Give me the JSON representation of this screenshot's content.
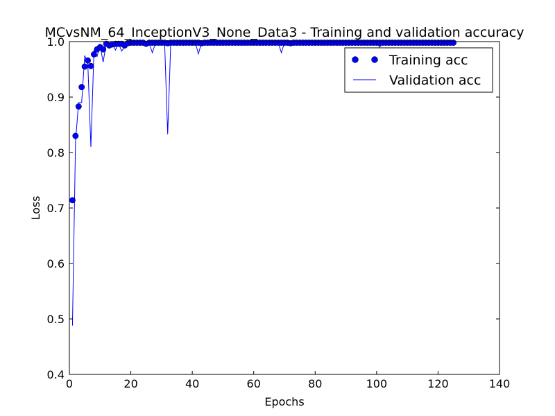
{
  "chart_data": {
    "type": "line",
    "title": "MCvsNM_64_InceptionV3_None_Data3 - Training and validation accuracy",
    "xlabel": "Epochs",
    "ylabel": "Loss",
    "xlim": [
      0,
      140
    ],
    "ylim": [
      0.4,
      1.0
    ],
    "xticks": [
      0,
      20,
      40,
      60,
      80,
      100,
      120,
      140
    ],
    "yticks": [
      0.4,
      0.5,
      0.6,
      0.7,
      0.8,
      0.9,
      1.0
    ],
    "xtick_labels": [
      "0",
      "20",
      "40",
      "60",
      "80",
      "100",
      "120",
      "140"
    ],
    "ytick_labels": [
      "0.4",
      "0.5",
      "0.6",
      "0.7",
      "0.8",
      "0.9",
      "1.0"
    ],
    "grid": false,
    "legend_position": "top-right",
    "series_color": "#0000ff",
    "series": [
      {
        "name": "Training acc",
        "style": "markers",
        "x": [
          1,
          2,
          3,
          4,
          5,
          6,
          7,
          8,
          9,
          10,
          11,
          12,
          13,
          14,
          15,
          16,
          17,
          18,
          19,
          20,
          21,
          22,
          23,
          24,
          25,
          26,
          27,
          28,
          29,
          30,
          31,
          32,
          33,
          34,
          35,
          36,
          37,
          38,
          39,
          40,
          41,
          42,
          43,
          44,
          45,
          46,
          47,
          48,
          49,
          50,
          51,
          52,
          53,
          54,
          55,
          56,
          57,
          58,
          59,
          60,
          61,
          62,
          63,
          64,
          65,
          66,
          67,
          68,
          69,
          70,
          71,
          72,
          73,
          74,
          75,
          76,
          77,
          78,
          79,
          80,
          81,
          82,
          83,
          84,
          85,
          86,
          87,
          88,
          89,
          90,
          91,
          92,
          93,
          94,
          95,
          96,
          97,
          98,
          99,
          100,
          101,
          102,
          103,
          104,
          105,
          106,
          107,
          108,
          109,
          110,
          111,
          112,
          113,
          114,
          115,
          116,
          117,
          118,
          119,
          120,
          121,
          122,
          123,
          124,
          125
        ],
        "values": [
          0.714,
          0.83,
          0.883,
          0.918,
          0.955,
          0.966,
          0.956,
          0.977,
          0.986,
          0.99,
          0.986,
          0.996,
          0.993,
          0.995,
          0.996,
          0.996,
          0.996,
          0.993,
          0.997,
          0.998,
          0.998,
          0.998,
          0.998,
          0.998,
          0.996,
          0.998,
          0.998,
          0.998,
          0.998,
          0.998,
          0.998,
          0.997,
          0.998,
          0.998,
          0.998,
          0.998,
          0.998,
          0.998,
          0.998,
          0.998,
          0.998,
          0.998,
          0.997,
          0.998,
          0.998,
          0.998,
          0.998,
          0.998,
          0.998,
          0.998,
          0.998,
          0.998,
          0.998,
          0.998,
          0.998,
          0.998,
          0.998,
          0.998,
          0.998,
          0.998,
          0.998,
          0.998,
          0.998,
          0.998,
          0.998,
          0.998,
          0.998,
          0.998,
          0.998,
          0.998,
          0.998,
          0.997,
          0.998,
          0.998,
          0.998,
          0.998,
          0.998,
          0.998,
          0.998,
          0.998,
          0.998,
          0.998,
          0.998,
          0.998,
          0.998,
          0.998,
          0.998,
          0.998,
          0.998,
          0.998,
          0.998,
          0.998,
          0.998,
          0.998,
          0.998,
          0.998,
          0.998,
          0.998,
          0.998,
          0.998,
          0.998,
          0.998,
          0.998,
          0.998,
          0.998,
          0.998,
          0.998,
          0.998,
          0.998,
          0.998,
          0.998,
          0.998,
          0.998,
          0.998,
          0.998,
          0.998,
          0.998,
          0.998,
          0.998,
          0.998,
          0.998,
          0.998,
          0.998,
          0.998,
          0.998
        ]
      },
      {
        "name": "Validation acc",
        "style": "line",
        "x": [
          1,
          2,
          3,
          4,
          5,
          6,
          7,
          8,
          9,
          10,
          11,
          12,
          13,
          14,
          15,
          16,
          17,
          18,
          19,
          20,
          21,
          22,
          23,
          24,
          25,
          26,
          27,
          28,
          29,
          30,
          31,
          32,
          33,
          34,
          35,
          36,
          37,
          38,
          39,
          40,
          41,
          42,
          43,
          44,
          45,
          46,
          47,
          48,
          49,
          50,
          51,
          52,
          53,
          54,
          55,
          56,
          57,
          58,
          59,
          60,
          61,
          62,
          63,
          64,
          65,
          66,
          67,
          68,
          69,
          70,
          71,
          72,
          73,
          74,
          75,
          76,
          77,
          78,
          79,
          80,
          81,
          82,
          83,
          84,
          85,
          86,
          87,
          88,
          89,
          90,
          91,
          92,
          93,
          94,
          95,
          96,
          97,
          98,
          99,
          100,
          101,
          102,
          103,
          104,
          105,
          106,
          107,
          108,
          109,
          110,
          111,
          112,
          113,
          114,
          115,
          116,
          117,
          118,
          119,
          120,
          121,
          122,
          123,
          124,
          125
        ],
        "values": [
          0.488,
          0.82,
          0.89,
          0.89,
          0.975,
          0.96,
          0.81,
          0.983,
          0.973,
          0.993,
          0.963,
          0.997,
          0.99,
          0.997,
          0.985,
          0.997,
          0.983,
          0.99,
          0.993,
          0.997,
          0.998,
          0.998,
          0.998,
          0.998,
          0.998,
          0.997,
          0.98,
          0.997,
          0.998,
          0.998,
          0.998,
          0.833,
          0.998,
          0.998,
          0.998,
          0.998,
          0.998,
          0.998,
          0.998,
          0.998,
          0.998,
          0.978,
          0.998,
          0.998,
          0.998,
          0.998,
          0.998,
          0.998,
          0.998,
          0.998,
          0.998,
          0.998,
          0.998,
          0.998,
          0.998,
          0.998,
          0.998,
          0.998,
          0.998,
          0.998,
          0.998,
          0.998,
          0.998,
          0.998,
          0.998,
          0.998,
          0.998,
          0.998,
          0.98,
          0.998,
          0.998,
          0.998,
          0.998,
          0.998,
          0.998,
          0.998,
          0.998,
          0.998,
          0.998,
          0.998,
          0.998,
          0.998,
          0.998,
          0.998,
          0.998,
          0.998,
          0.998,
          0.998,
          0.998,
          0.998,
          0.998,
          0.998,
          0.998,
          0.998,
          0.998,
          0.998,
          0.998,
          0.998,
          0.998,
          0.998,
          0.99,
          0.998,
          0.998,
          0.998,
          0.998,
          0.998,
          0.998,
          0.998,
          0.998,
          0.998,
          0.998,
          0.998,
          0.998,
          0.998,
          0.998,
          0.998,
          0.998,
          0.998,
          0.998,
          0.998,
          0.998,
          0.998,
          0.998,
          0.998,
          0.998
        ]
      }
    ]
  }
}
